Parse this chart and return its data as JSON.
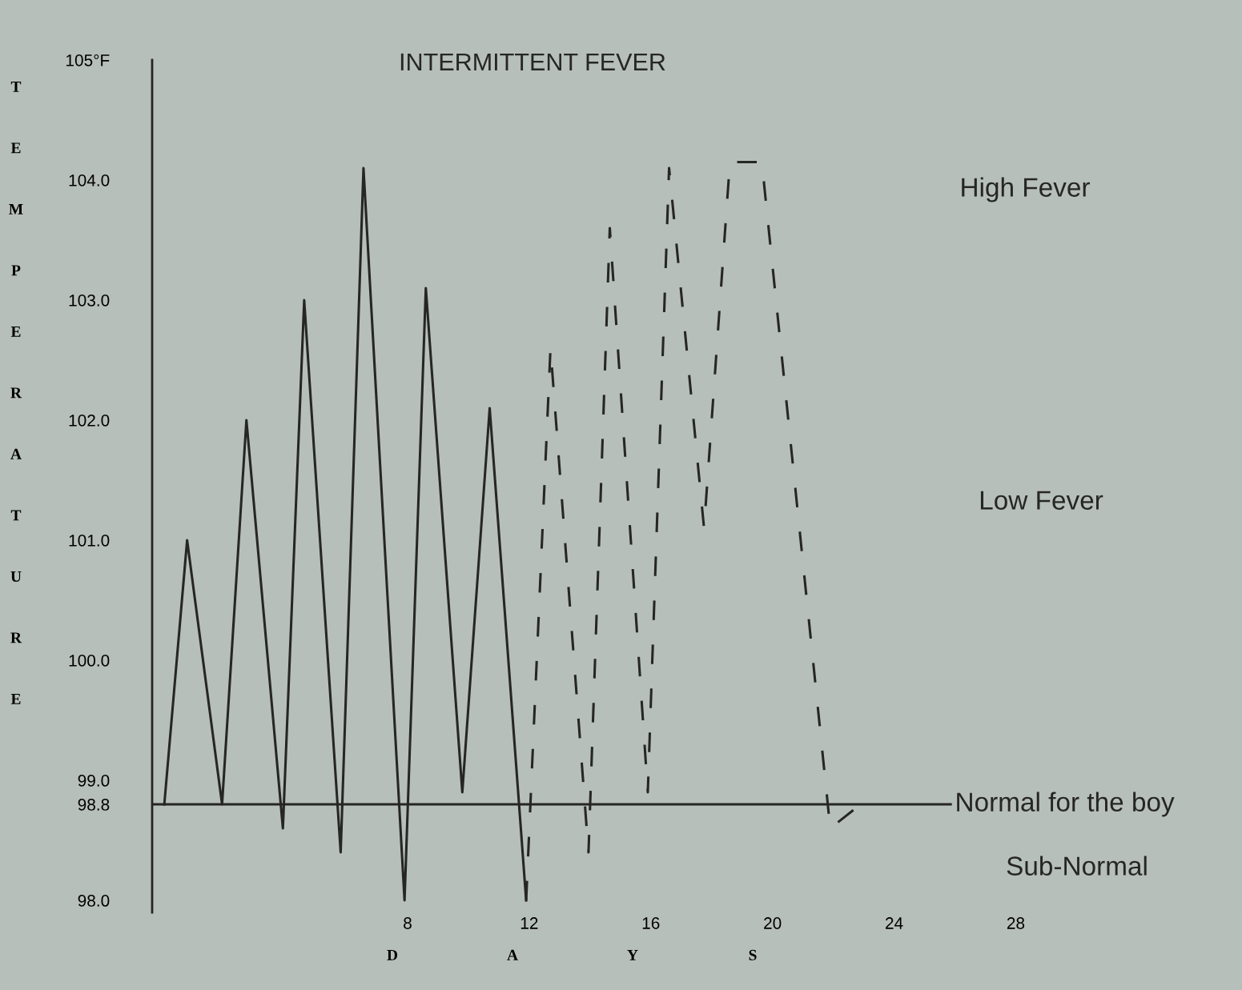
{
  "chart_data": {
    "type": "line",
    "title": "INTERMITTENT FEVER",
    "xlabel": "DAYS",
    "ylabel": "TEMPERATURE",
    "series": [
      {
        "color": "#262626",
        "line_style": "solid",
        "x": [
          0,
          0.75,
          1.9,
          2.7,
          3.9,
          4.6,
          5.8,
          6.55,
          7.9,
          8.6,
          9.8,
          10.7,
          11.9
        ],
        "values": [
          98.8,
          101.0,
          98.8,
          102.0,
          98.6,
          103.0,
          98.4,
          104.1,
          98.0,
          103.1,
          98.9,
          102.1,
          98.0
        ]
      },
      {
        "color": "#262626",
        "line_style": "dashed",
        "x": [
          11.9,
          12.7,
          13.95,
          14.65,
          15.9,
          16.6,
          17.75,
          18.6,
          19.65,
          21.9,
          22.9
        ],
        "values": [
          98.0,
          102.6,
          98.4,
          103.6,
          98.9,
          104.1,
          101.1,
          104.15,
          104.15,
          98.6,
          98.8
        ]
      }
    ],
    "xlim": [
      -0.4,
      35.4
    ],
    "xticks": [
      8,
      12,
      16,
      20,
      24,
      28
    ],
    "ylim": [
      97.9,
      105
    ],
    "yticks": [
      {
        "value": 105,
        "label": "105°F"
      },
      {
        "value": 104,
        "label": "104.0"
      },
      {
        "value": 103,
        "label": "103.0"
      },
      {
        "value": 102,
        "label": "102.0"
      },
      {
        "value": 101,
        "label": "101.0"
      },
      {
        "value": 100,
        "label": "100.0"
      },
      {
        "value": 99,
        "label": "99.0"
      },
      {
        "value": 98.8,
        "label": "98.8"
      },
      {
        "value": 98,
        "label": "98.0"
      }
    ],
    "ref_lines": [
      {
        "axis": "y",
        "value": 98.8,
        "label": "Normal for the boy",
        "color": "#262626",
        "line_style": "solid"
      }
    ],
    "annotations": [
      "High Fever",
      "Low Fever",
      "Sub-Normal"
    ],
    "grid": false,
    "legend": false,
    "marker": "none"
  }
}
